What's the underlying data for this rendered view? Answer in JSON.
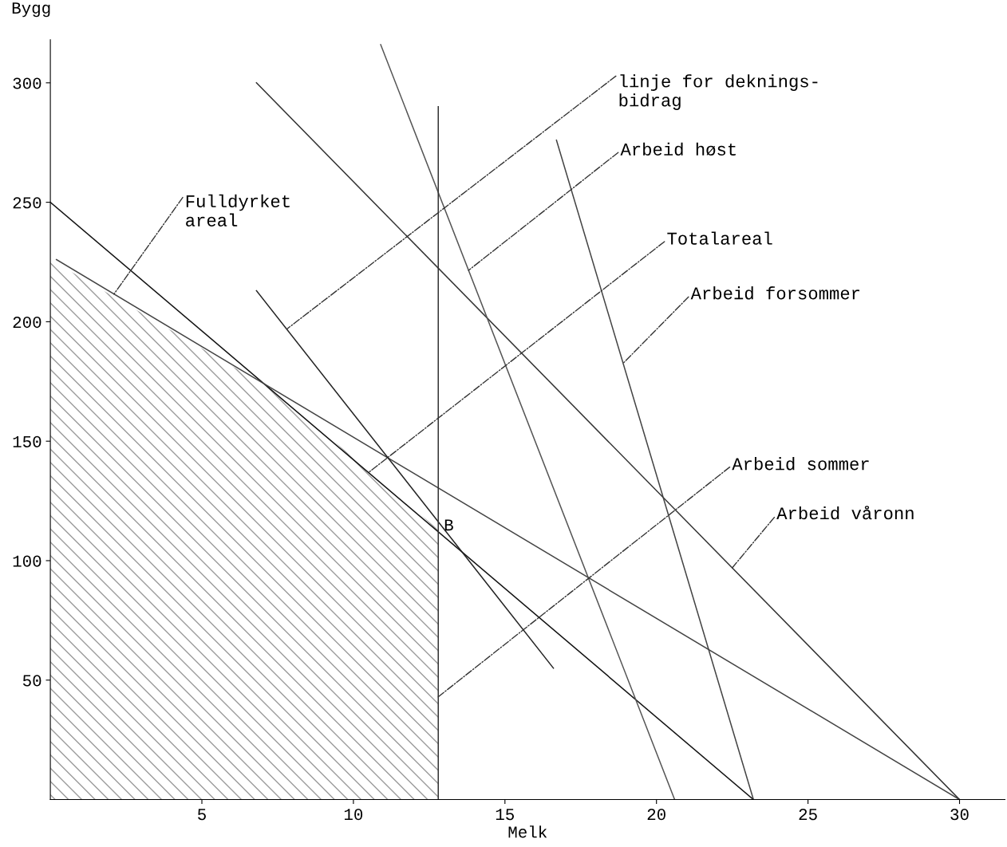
{
  "chart_data": {
    "type": "line",
    "xlabel": "Melk",
    "ylabel": "Bygg",
    "xlim": [
      0,
      31.5
    ],
    "ylim": [
      0,
      318
    ],
    "xticks": [
      5,
      10,
      15,
      20,
      25,
      30
    ],
    "yticks": [
      50,
      100,
      150,
      200,
      250,
      300
    ],
    "grid": false,
    "marker": "none",
    "line_style": "solid",
    "series": [
      {
        "type": "area",
        "color": "#9a9a9a",
        "x": [
          0,
          7.4,
          12.8
        ],
        "values": [
          226,
          171,
          113
        ]
      },
      {
        "color": "#111111",
        "x": [
          0,
          23.2
        ],
        "values": [
          250,
          0
        ]
      },
      {
        "color": "#444444",
        "x": [
          0.2,
          30
        ],
        "values": [
          226,
          0
        ]
      },
      {
        "color": "#222222",
        "x": [
          6.8,
          16.6
        ],
        "values": [
          213,
          55
        ]
      },
      {
        "color": "#333333",
        "x": [
          6.8,
          30
        ],
        "values": [
          300,
          0
        ]
      },
      {
        "color": "#555555",
        "x": [
          10.9,
          20.6
        ],
        "values": [
          316,
          0
        ]
      },
      {
        "color": "#444444",
        "x": [
          16.7,
          23.2
        ],
        "values": [
          276,
          0
        ]
      },
      {
        "color": "#333333",
        "x": [
          12.8,
          12.8
        ],
        "values": [
          0,
          290
        ]
      }
    ],
    "annotations": [
      {
        "text": "Fulldyrket\nareal",
        "x": 2.1,
        "y": 211.6
      },
      {
        "text": "linje for deknings-\nbidrag",
        "x": 7.8,
        "y": 196.9
      },
      {
        "text": "Arbeid høst",
        "x": 13.8,
        "y": 221.5
      },
      {
        "text": "Totalareal",
        "x": 10.5,
        "y": 136.9
      },
      {
        "text": "Arbeid forsommer",
        "x": 18.9,
        "y": 182.6
      },
      {
        "text": "Arbeid sommer",
        "x": 12.8,
        "y": 43
      },
      {
        "text": "Arbeid våronn",
        "x": 22.5,
        "y": 97.0
      },
      {
        "text": "B",
        "x": 12.8,
        "y": 112.1
      }
    ]
  }
}
